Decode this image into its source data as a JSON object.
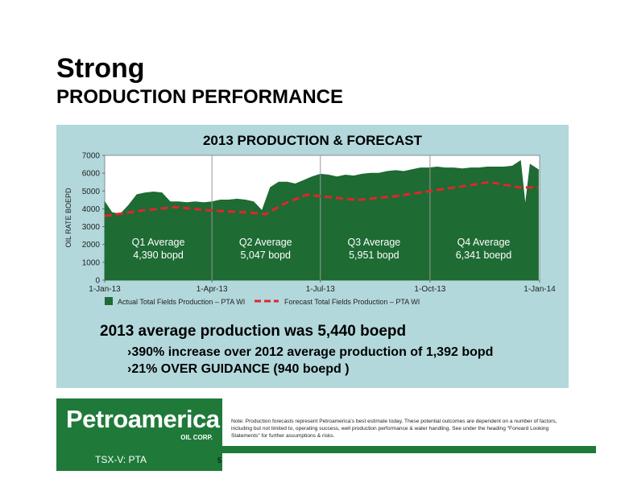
{
  "title": "Strong",
  "subtitle": "PRODUCTION PERFORMANCE",
  "chart_data": {
    "type": "area",
    "title": "2013 PRODUCTION & FORECAST",
    "ylabel": "OIL RATE BOEPD",
    "xlabel": "",
    "ylim": [
      0,
      7000
    ],
    "yticks": [
      "0",
      "1000",
      "2000",
      "3000",
      "4000",
      "5000",
      "6000",
      "7000"
    ],
    "xticks": [
      "1-Jan-13",
      "1-Apr-13",
      "1-Jul-13",
      "1-Oct-13",
      "1-Jan-14"
    ],
    "grid": "none",
    "legend_placement": "bottom",
    "series": [
      {
        "name": "Actual Total Fields Production – PTA WI",
        "type": "area",
        "color": "#1e6b34",
        "x": [
          "2013-01-01",
          "2013-01-07",
          "2013-01-14",
          "2013-01-21",
          "2013-01-28",
          "2013-02-04",
          "2013-02-11",
          "2013-02-18",
          "2013-02-25",
          "2013-03-04",
          "2013-03-11",
          "2013-03-18",
          "2013-03-25",
          "2013-04-01",
          "2013-04-08",
          "2013-04-15",
          "2013-04-22",
          "2013-04-29",
          "2013-05-06",
          "2013-05-13",
          "2013-05-20",
          "2013-05-27",
          "2013-06-03",
          "2013-06-10",
          "2013-06-17",
          "2013-06-24",
          "2013-07-01",
          "2013-07-08",
          "2013-07-15",
          "2013-07-22",
          "2013-07-29",
          "2013-08-05",
          "2013-08-12",
          "2013-08-19",
          "2013-08-26",
          "2013-09-02",
          "2013-09-09",
          "2013-09-16",
          "2013-09-23",
          "2013-09-30",
          "2013-10-07",
          "2013-10-14",
          "2013-10-21",
          "2013-10-28",
          "2013-11-04",
          "2013-11-11",
          "2013-11-18",
          "2013-11-25",
          "2013-12-02",
          "2013-12-09",
          "2013-12-16",
          "2013-12-20",
          "2013-12-24",
          "2013-12-31"
        ],
        "values": [
          4400,
          3800,
          3700,
          4200,
          4800,
          4900,
          4950,
          4900,
          4400,
          4400,
          4350,
          4400,
          4350,
          4400,
          4500,
          4500,
          4550,
          4500,
          4400,
          3900,
          5200,
          5500,
          5500,
          5400,
          5600,
          5800,
          5950,
          5900,
          5800,
          5900,
          5850,
          5950,
          6000,
          6000,
          6100,
          6150,
          6100,
          6200,
          6300,
          6300,
          6350,
          6300,
          6300,
          6250,
          6300,
          6300,
          6350,
          6350,
          6350,
          6400,
          6700,
          4200,
          6500,
          6200
        ]
      },
      {
        "name": "Forecast Total Fields Production – PTA WI",
        "type": "line",
        "style": "dashed",
        "color": "#e0262b",
        "x": [
          "2013-01-01",
          "2013-02-01",
          "2013-03-01",
          "2013-04-01",
          "2013-05-01",
          "2013-05-16",
          "2013-06-01",
          "2013-06-20",
          "2013-07-01",
          "2013-08-01",
          "2013-09-01",
          "2013-10-01",
          "2013-11-01",
          "2013-11-20",
          "2013-12-15",
          "2013-12-31"
        ],
        "values": [
          3600,
          3900,
          4100,
          3900,
          3800,
          3700,
          4300,
          4800,
          4700,
          4500,
          4700,
          5000,
          5300,
          5500,
          5200,
          5200
        ]
      }
    ],
    "annotations": [
      {
        "label": "Q1 Average",
        "value": "4,390 bopd"
      },
      {
        "label": "Q2 Average",
        "value": "5,047 bopd"
      },
      {
        "label": "Q3 Average",
        "value": "5,951 bopd"
      },
      {
        "label": "Q4 Average",
        "value": "6,341 boepd"
      }
    ]
  },
  "summary": "2013 average production was 5,440 boepd",
  "bullets": [
    "›390% increase over 2012 average production of 1,392 bopd",
    "›21% OVER GUIDANCE (940 boepd )"
  ],
  "logo": {
    "name": "Petroamerica",
    "corp": "OIL CORP.",
    "ticker": "TSX-V: PTA"
  },
  "page_number": "5",
  "note": "Note: Production forecasts represent Petroamerica's best estimate today. These potential outcomes are dependent on a number of factors, including but not limited to, operating success, well production performance & water handling. See under the heading \"Forward Looking Statements\" for further assumptions & risks.",
  "colors": {
    "panel": "#b2d8dc",
    "brand_green": "#1f7a3a",
    "area": "#1e6b34",
    "forecast": "#e0262b"
  }
}
